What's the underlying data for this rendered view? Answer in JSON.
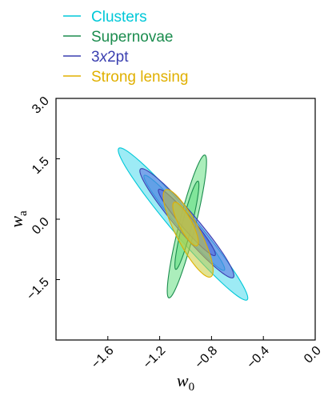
{
  "chart_data": {
    "type": "contour",
    "xlabel": "w",
    "xlabel_sub": "0",
    "ylabel": "w",
    "ylabel_sub": "a",
    "xlim": [
      -2.0,
      0.0
    ],
    "ylim": [
      -3.0,
      3.0
    ],
    "xticks": [
      -1.6,
      -1.2,
      -0.8,
      -0.4,
      0.0
    ],
    "xtick_labels": [
      "−1.6",
      "−1.2",
      "−0.8",
      "−0.4",
      "0.0"
    ],
    "yticks": [
      3.0,
      1.5,
      0.0,
      -1.5
    ],
    "ytick_labels": [
      "3.0",
      "1.5",
      "0.0",
      "−1.5"
    ],
    "legend_position": "top-left",
    "series": [
      {
        "name": "Clusters",
        "color": "#00c8d8",
        "fill": "#4ddbec",
        "contours": [
          {
            "level": "95%",
            "center": [
              -1.02,
              -0.12
            ],
            "direction": [
              0.25,
              -0.97
            ],
            "major": 1.95,
            "minor": 0.115
          },
          {
            "level": "68%",
            "center": [
              -1.01,
              -0.09
            ],
            "direction": [
              0.25,
              -0.97
            ],
            "major": 1.22,
            "minor": 0.068
          }
        ]
      },
      {
        "name": "Supernovae",
        "color": "#1b8c4e",
        "fill": "#66e083",
        "contours": [
          {
            "level": "95%",
            "center": [
              -0.99,
              -0.18
            ],
            "direction": [
              0.077,
              0.997
            ],
            "major": 1.78,
            "minor": 0.065
          },
          {
            "level": "68%",
            "center": [
              -0.99,
              -0.15
            ],
            "direction": [
              0.077,
              0.997
            ],
            "major": 1.1,
            "minor": 0.038
          }
        ]
      },
      {
        "name": "3x2pt",
        "color": "#3a3fb0",
        "fill": "#5b6ce0",
        "contours": [
          {
            "level": "95%",
            "center": [
              -0.99,
              -0.1
            ],
            "direction": [
              0.25,
              -0.97
            ],
            "major": 1.4,
            "minor": 0.1
          },
          {
            "level": "68%",
            "center": [
              -0.99,
              -0.08
            ],
            "direction": [
              0.25,
              -0.97
            ],
            "major": 0.85,
            "minor": 0.06
          }
        ]
      },
      {
        "name": "Strong lensing",
        "color": "#e0b000",
        "fill": "#c9cc3a",
        "contours": [
          {
            "level": "95%",
            "center": [
              -0.98,
              -0.35
            ],
            "direction": [
              0.15,
              -0.99
            ],
            "major": 1.1,
            "minor": 0.1
          },
          {
            "level": "68%",
            "center": [
              -1.0,
              -0.12
            ],
            "direction": [
              0.15,
              -0.99
            ],
            "major": 0.55,
            "minor": 0.055
          }
        ]
      }
    ]
  },
  "legend": {
    "items": [
      {
        "label": "Clusters",
        "color": "#00c8d8"
      },
      {
        "label": "Supernovae",
        "color": "#1b8c4e"
      },
      {
        "label": "3x2pt",
        "label_prefix": "3",
        "label_italic": "x",
        "label_suffix": "2pt",
        "color": "#3a3fb0"
      },
      {
        "label": "Strong lensing",
        "color": "#e0b000"
      }
    ]
  }
}
